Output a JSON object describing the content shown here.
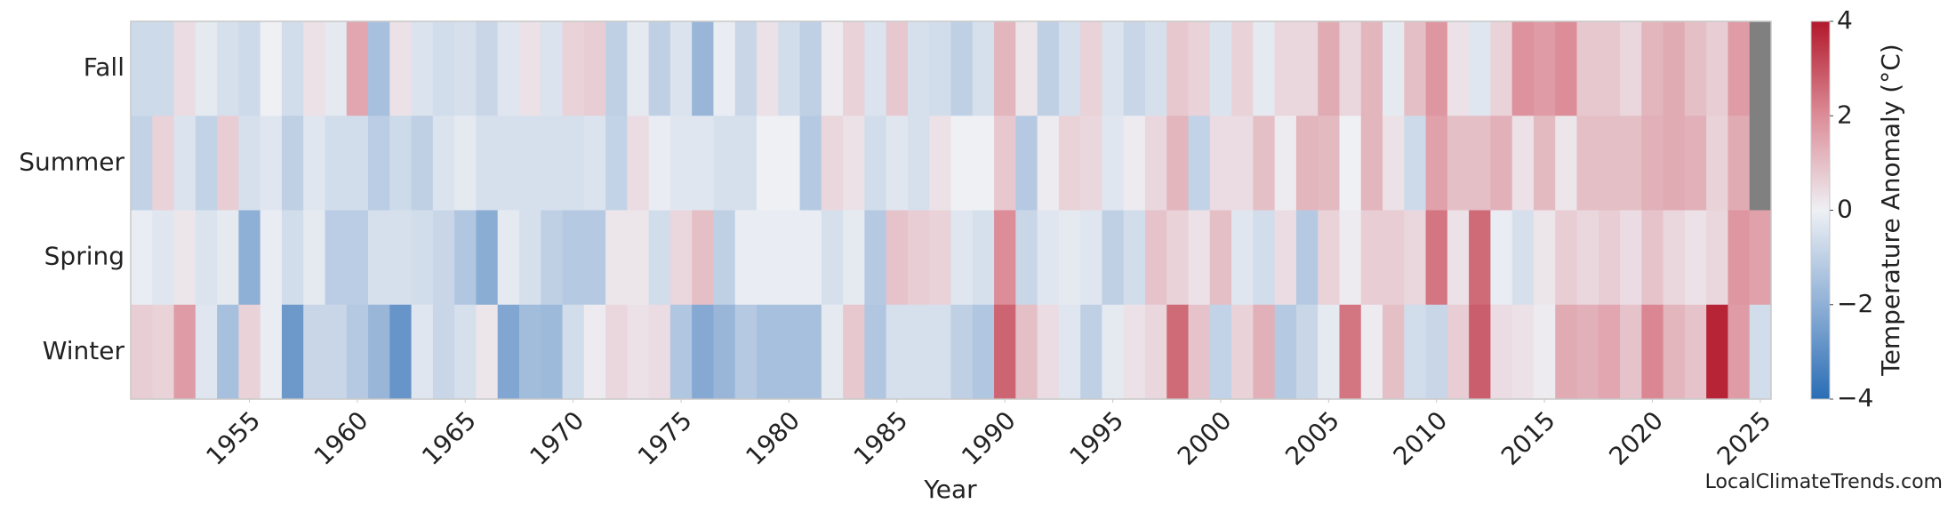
{
  "chart_data": {
    "type": "heatmap",
    "x_label": "Year",
    "colorbar_label": "Temperature Anomaly (°C)",
    "watermark": "LocalClimateTrends.com",
    "x": [
      1950,
      1951,
      1952,
      1953,
      1954,
      1955,
      1956,
      1957,
      1958,
      1959,
      1960,
      1961,
      1962,
      1963,
      1964,
      1965,
      1966,
      1967,
      1968,
      1969,
      1970,
      1971,
      1972,
      1973,
      1974,
      1975,
      1976,
      1977,
      1978,
      1979,
      1980,
      1981,
      1982,
      1983,
      1984,
      1985,
      1986,
      1987,
      1988,
      1989,
      1990,
      1991,
      1992,
      1993,
      1994,
      1995,
      1996,
      1997,
      1998,
      1999,
      2000,
      2001,
      2002,
      2003,
      2004,
      2005,
      2006,
      2007,
      2008,
      2009,
      2010,
      2011,
      2012,
      2013,
      2014,
      2015,
      2016,
      2017,
      2018,
      2019,
      2020,
      2021,
      2022,
      2023,
      2024,
      2025
    ],
    "xlim": [
      1949.5,
      2025.5
    ],
    "xticks": [
      1955,
      1960,
      1965,
      1970,
      1975,
      1980,
      1985,
      1990,
      1995,
      2000,
      2005,
      2010,
      2015,
      2020,
      2025
    ],
    "series": [
      {
        "name": "Fall",
        "values": [
          -0.7,
          -0.7,
          0.4,
          -0.2,
          -0.5,
          -0.7,
          0.0,
          -0.6,
          0.3,
          -0.2,
          1.5,
          -1.5,
          0.3,
          -0.4,
          -0.6,
          -0.5,
          -0.8,
          -0.3,
          0.3,
          -0.4,
          0.6,
          0.7,
          -1.0,
          -0.2,
          -1.0,
          -0.4,
          -1.8,
          -0.1,
          -0.8,
          0.3,
          -0.6,
          -1.0,
          0.1,
          0.6,
          -0.4,
          0.8,
          -0.5,
          -0.6,
          -1.0,
          -0.5,
          1.2,
          0.2,
          -1.0,
          -0.5,
          0.6,
          -0.4,
          -0.8,
          -0.5,
          0.8,
          0.6,
          -0.4,
          0.6,
          -0.2,
          0.5,
          0.5,
          1.4,
          0.5,
          1.2,
          -0.2,
          1.0,
          1.8,
          0.3,
          -0.3,
          0.6,
          1.9,
          1.7,
          2.0,
          0.8,
          0.8,
          0.5,
          1.2,
          1.4,
          1.0,
          0.7,
          1.7,
          null
        ]
      },
      {
        "name": "Summer",
        "values": [
          -0.9,
          0.6,
          -0.4,
          -0.9,
          0.7,
          -0.5,
          -0.3,
          -1.0,
          -0.3,
          -0.6,
          -0.6,
          -1.1,
          -0.7,
          -1.0,
          -0.4,
          -0.2,
          -0.5,
          -0.5,
          -0.5,
          -0.5,
          -0.5,
          -0.4,
          -0.9,
          0.4,
          -0.1,
          -0.3,
          -0.3,
          -0.5,
          -0.5,
          0.0,
          0.0,
          -1.2,
          0.5,
          0.3,
          -0.6,
          -0.3,
          -0.5,
          0.3,
          0.0,
          0.0,
          0.8,
          -1.2,
          0.1,
          0.6,
          0.5,
          -0.3,
          0.1,
          0.5,
          1.2,
          -0.9,
          0.4,
          0.4,
          1.0,
          0.1,
          1.2,
          1.1,
          0.0,
          1.2,
          0.3,
          -0.7,
          1.6,
          1.0,
          1.0,
          1.3,
          0.3,
          1.1,
          0.2,
          1.0,
          1.0,
          1.0,
          1.3,
          1.4,
          1.3,
          0.6,
          1.4,
          null
        ]
      },
      {
        "name": "Spring",
        "values": [
          -0.1,
          -0.3,
          0.2,
          -0.4,
          -0.2,
          -2.0,
          -0.1,
          -0.6,
          -0.2,
          -1.1,
          -1.1,
          -0.5,
          -0.5,
          -0.6,
          -0.8,
          -1.3,
          -2.1,
          -0.2,
          -0.5,
          -1.0,
          -1.2,
          -1.2,
          0.2,
          0.2,
          -0.6,
          0.5,
          1.0,
          -1.0,
          -0.1,
          -0.1,
          -0.1,
          -0.1,
          -0.5,
          -0.2,
          -1.2,
          0.9,
          0.7,
          0.6,
          -0.3,
          -0.5,
          2.0,
          -0.8,
          -0.3,
          -0.2,
          -0.3,
          -1.0,
          -0.6,
          0.9,
          0.6,
          0.3,
          1.0,
          -0.3,
          -0.6,
          0.4,
          -1.2,
          0.6,
          0.1,
          0.7,
          0.7,
          0.5,
          2.4,
          0.3,
          2.6,
          -0.1,
          -0.5,
          0.2,
          0.7,
          0.5,
          0.7,
          0.4,
          0.9,
          0.5,
          0.3,
          0.5,
          1.8,
          1.6
        ]
      },
      {
        "name": "Winter",
        "values": [
          0.7,
          0.6,
          1.7,
          -0.3,
          -1.5,
          0.6,
          -0.1,
          -2.7,
          -0.8,
          -0.8,
          -1.2,
          -1.8,
          -2.8,
          -0.3,
          -0.8,
          -0.5,
          0.2,
          -2.3,
          -1.6,
          -1.7,
          -0.6,
          0.1,
          0.5,
          0.3,
          0.4,
          -1.3,
          -2.2,
          -1.8,
          -1.2,
          -1.5,
          -1.5,
          -1.5,
          -0.2,
          0.8,
          -1.3,
          -0.5,
          -0.5,
          -0.5,
          -1.0,
          -1.3,
          2.7,
          1.0,
          0.4,
          -0.3,
          -1.0,
          -0.2,
          0.3,
          0.5,
          2.6,
          0.9,
          -0.9,
          0.6,
          1.3,
          -1.2,
          -0.8,
          -0.2,
          2.4,
          0.1,
          1.0,
          -0.6,
          -0.8,
          0.7,
          2.8,
          0.4,
          0.3,
          0.1,
          1.4,
          1.3,
          1.5,
          0.9,
          2.1,
          1.2,
          0.9,
          3.8,
          1.7,
          -0.6
        ]
      }
    ],
    "clim": [
      -4,
      4
    ],
    "cticks": [
      {
        "value": -4,
        "label": "−4"
      },
      {
        "value": -2,
        "label": "−2"
      },
      0,
      2,
      4
    ],
    "colormap": "RdBu",
    "missing_color": "#808080"
  }
}
